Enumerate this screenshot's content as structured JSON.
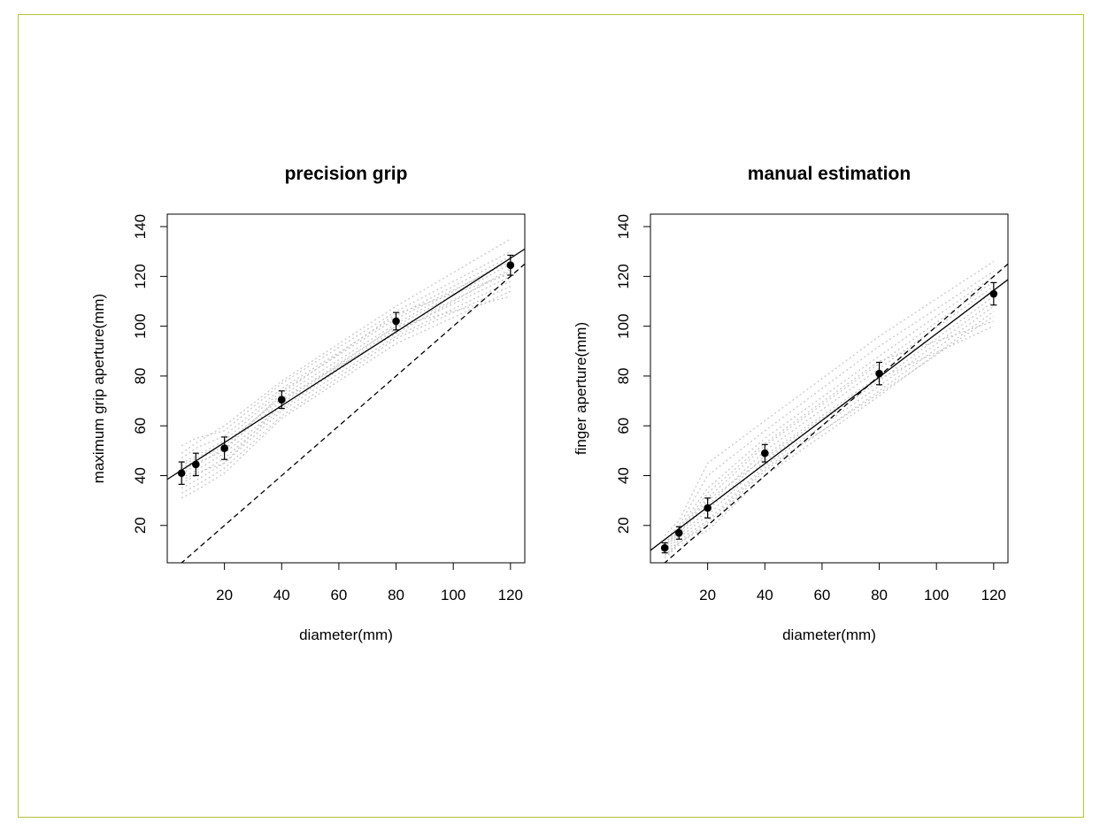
{
  "chart_data": [
    {
      "type": "scatter",
      "title": "precision grip",
      "xlabel": "diameter(mm)",
      "ylabel": "maximum grip aperture(mm)",
      "xlim": [
        0,
        125
      ],
      "ylim": [
        5,
        145
      ],
      "xticks": [
        20,
        40,
        60,
        80,
        100,
        120
      ],
      "yticks": [
        20,
        40,
        60,
        80,
        100,
        120,
        140
      ],
      "points": [
        {
          "x": 5,
          "y": 41,
          "err": 4.5
        },
        {
          "x": 10,
          "y": 44.5,
          "err": 4.5
        },
        {
          "x": 20,
          "y": 51,
          "err": 4.5
        },
        {
          "x": 40,
          "y": 70.5,
          "err": 3.5
        },
        {
          "x": 80,
          "y": 102,
          "err": 3.5
        },
        {
          "x": 120,
          "y": 124.5,
          "err": 4
        }
      ],
      "fit_line": {
        "intercept": 38.5,
        "slope": 0.74
      },
      "identity_line": true,
      "subject_lines": [
        [
          [
            5,
            52
          ],
          [
            10,
            55
          ],
          [
            20,
            58
          ],
          [
            40,
            77
          ],
          [
            80,
            106
          ],
          [
            120,
            130
          ]
        ],
        [
          [
            5,
            49
          ],
          [
            10,
            53
          ],
          [
            20,
            60
          ],
          [
            40,
            78
          ],
          [
            80,
            108
          ],
          [
            120,
            135
          ]
        ],
        [
          [
            5,
            47
          ],
          [
            10,
            51
          ],
          [
            20,
            56
          ],
          [
            40,
            75
          ],
          [
            80,
            104
          ],
          [
            120,
            128
          ]
        ],
        [
          [
            5,
            45
          ],
          [
            10,
            48
          ],
          [
            20,
            54
          ],
          [
            40,
            74
          ],
          [
            80,
            103
          ],
          [
            120,
            126
          ]
        ],
        [
          [
            5,
            43
          ],
          [
            10,
            46
          ],
          [
            20,
            52
          ],
          [
            40,
            72
          ],
          [
            80,
            101
          ],
          [
            120,
            127
          ]
        ],
        [
          [
            5,
            41
          ],
          [
            10,
            44
          ],
          [
            20,
            51
          ],
          [
            40,
            70
          ],
          [
            80,
            100
          ],
          [
            120,
            125
          ]
        ],
        [
          [
            5,
            39
          ],
          [
            10,
            42
          ],
          [
            20,
            49
          ],
          [
            40,
            68
          ],
          [
            80,
            99
          ],
          [
            120,
            122
          ]
        ],
        [
          [
            5,
            37
          ],
          [
            10,
            40
          ],
          [
            20,
            47
          ],
          [
            40,
            67
          ],
          [
            80,
            98
          ],
          [
            120,
            120
          ]
        ],
        [
          [
            5,
            35
          ],
          [
            10,
            38
          ],
          [
            20,
            45
          ],
          [
            40,
            66
          ],
          [
            80,
            96
          ],
          [
            120,
            118
          ]
        ],
        [
          [
            5,
            33
          ],
          [
            10,
            36
          ],
          [
            20,
            43
          ],
          [
            40,
            64
          ],
          [
            80,
            95
          ],
          [
            120,
            116
          ]
        ],
        [
          [
            5,
            31
          ],
          [
            10,
            34
          ],
          [
            20,
            41
          ],
          [
            40,
            63
          ],
          [
            80,
            93
          ],
          [
            120,
            114
          ]
        ],
        [
          [
            5,
            38
          ],
          [
            10,
            41
          ],
          [
            20,
            45
          ],
          [
            40,
            69
          ],
          [
            80,
            100
          ],
          [
            120,
            112
          ]
        ],
        [
          [
            5,
            44
          ],
          [
            10,
            47
          ],
          [
            20,
            53
          ],
          [
            40,
            71
          ],
          [
            80,
            97
          ],
          [
            120,
            123
          ]
        ],
        [
          [
            5,
            42
          ],
          [
            10,
            45
          ],
          [
            20,
            50
          ],
          [
            40,
            73
          ],
          [
            80,
            105
          ],
          [
            120,
            121
          ]
        ]
      ]
    },
    {
      "type": "scatter",
      "title": "manual estimation",
      "xlabel": "diameter(mm)",
      "ylabel": "finger aperture(mm)",
      "xlim": [
        0,
        125
      ],
      "ylim": [
        5,
        145
      ],
      "xticks": [
        20,
        40,
        60,
        80,
        100,
        120
      ],
      "yticks": [
        20,
        40,
        60,
        80,
        100,
        120,
        140
      ],
      "points": [
        {
          "x": 5,
          "y": 11,
          "err": 2
        },
        {
          "x": 10,
          "y": 17,
          "err": 2.5
        },
        {
          "x": 20,
          "y": 27,
          "err": 4
        },
        {
          "x": 40,
          "y": 49,
          "err": 3.5
        },
        {
          "x": 80,
          "y": 81,
          "err": 4.5
        },
        {
          "x": 120,
          "y": 113,
          "err": 4.5
        }
      ],
      "fit_line": {
        "intercept": 10,
        "slope": 0.87
      },
      "identity_line": true,
      "subject_lines": [
        [
          [
            5,
            16
          ],
          [
            10,
            22
          ],
          [
            20,
            45
          ],
          [
            40,
            62
          ],
          [
            80,
            96
          ],
          [
            120,
            126
          ]
        ],
        [
          [
            5,
            14
          ],
          [
            10,
            20
          ],
          [
            20,
            40
          ],
          [
            40,
            58
          ],
          [
            80,
            92
          ],
          [
            120,
            122
          ]
        ],
        [
          [
            5,
            13
          ],
          [
            10,
            19
          ],
          [
            20,
            35
          ],
          [
            40,
            55
          ],
          [
            80,
            88
          ],
          [
            120,
            120
          ]
        ],
        [
          [
            5,
            12
          ],
          [
            10,
            18
          ],
          [
            20,
            31
          ],
          [
            40,
            52
          ],
          [
            80,
            85
          ],
          [
            120,
            118
          ]
        ],
        [
          [
            5,
            11
          ],
          [
            10,
            17
          ],
          [
            20,
            28
          ],
          [
            40,
            50
          ],
          [
            80,
            83
          ],
          [
            120,
            116
          ]
        ],
        [
          [
            5,
            10
          ],
          [
            10,
            16
          ],
          [
            20,
            26
          ],
          [
            40,
            48
          ],
          [
            80,
            80
          ],
          [
            120,
            114
          ]
        ],
        [
          [
            5,
            9
          ],
          [
            10,
            15
          ],
          [
            20,
            24
          ],
          [
            40,
            46
          ],
          [
            80,
            78
          ],
          [
            120,
            112
          ]
        ],
        [
          [
            5,
            8
          ],
          [
            10,
            14
          ],
          [
            20,
            22
          ],
          [
            40,
            44
          ],
          [
            80,
            76
          ],
          [
            120,
            110
          ]
        ],
        [
          [
            5,
            7
          ],
          [
            10,
            13
          ],
          [
            20,
            20
          ],
          [
            40,
            42
          ],
          [
            80,
            74
          ],
          [
            120,
            108
          ]
        ],
        [
          [
            5,
            7
          ],
          [
            10,
            12
          ],
          [
            20,
            18
          ],
          [
            40,
            40
          ],
          [
            80,
            72
          ],
          [
            120,
            106
          ]
        ],
        [
          [
            5,
            8
          ],
          [
            10,
            13
          ],
          [
            20,
            21
          ],
          [
            40,
            43
          ],
          [
            80,
            73
          ],
          [
            120,
            104
          ]
        ],
        [
          [
            5,
            12
          ],
          [
            10,
            17
          ],
          [
            20,
            30
          ],
          [
            40,
            47
          ],
          [
            80,
            79
          ],
          [
            120,
            100
          ]
        ],
        [
          [
            5,
            13
          ],
          [
            10,
            18
          ],
          [
            20,
            33
          ],
          [
            40,
            53
          ],
          [
            80,
            86
          ],
          [
            120,
            102
          ]
        ]
      ]
    }
  ],
  "colors": {
    "frame": "#b5c43a",
    "subject": "#c8c8c8",
    "ink": "#000000"
  }
}
